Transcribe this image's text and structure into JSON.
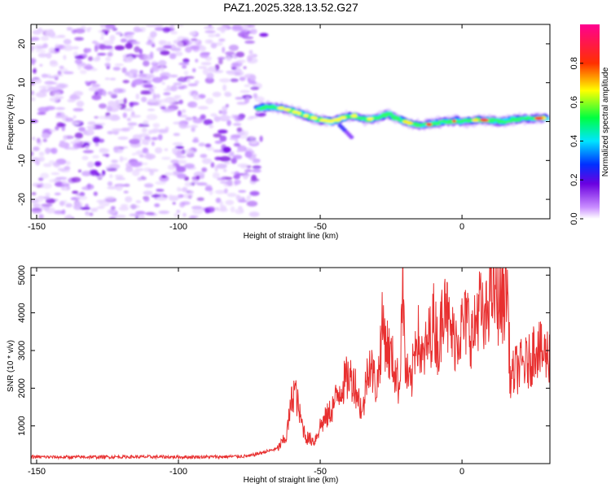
{
  "title": "PAZ1.2025.328.13.52.G27",
  "chart_data": [
    {
      "type": "heatmap",
      "xlabel": "Height of straight line (km)",
      "ylabel": "Frequency (Hz)",
      "xlim": [
        -152,
        31
      ],
      "ylim": [
        -25,
        25
      ],
      "xticks": [
        -150,
        -100,
        -50,
        0
      ],
      "yticks": [
        20,
        10,
        0,
        -10,
        -20
      ],
      "noise_region": [
        -152,
        -72
      ],
      "signal_trace": [
        {
          "x": -72,
          "y": 3.5
        },
        {
          "x": -68,
          "y": 3.8
        },
        {
          "x": -64,
          "y": 3.5
        },
        {
          "x": -60,
          "y": 2.8
        },
        {
          "x": -55,
          "y": 1.5
        },
        {
          "x": -50,
          "y": 0.5
        },
        {
          "x": -46,
          "y": 0.0
        },
        {
          "x": -42,
          "y": 1.0
        },
        {
          "x": -38,
          "y": 1.5
        },
        {
          "x": -34,
          "y": 0.5
        },
        {
          "x": -30,
          "y": 1.0
        },
        {
          "x": -26,
          "y": 2.0
        },
        {
          "x": -22,
          "y": 0.5
        },
        {
          "x": -18,
          "y": -0.5
        },
        {
          "x": -14,
          "y": -1.0
        },
        {
          "x": -10,
          "y": -0.5
        },
        {
          "x": -6,
          "y": 0.0
        },
        {
          "x": -2,
          "y": 0.2
        },
        {
          "x": 2,
          "y": 0.0
        },
        {
          "x": 6,
          "y": 0.5
        },
        {
          "x": 10,
          "y": 0.3
        },
        {
          "x": 14,
          "y": 0.0
        },
        {
          "x": 18,
          "y": 0.5
        },
        {
          "x": 22,
          "y": 0.8
        },
        {
          "x": 26,
          "y": 0.8
        },
        {
          "x": 30,
          "y": 1.0
        }
      ],
      "colorbar": {
        "label": "Normalized spectral amplitude",
        "range": [
          0,
          1
        ],
        "ticks": [
          0.0,
          0.2,
          0.4,
          0.6,
          0.8
        ]
      }
    },
    {
      "type": "line",
      "xlabel": "Height of straight line (km)",
      "ylabel": "SNR (10 * v/v)",
      "xlim": [
        -152,
        31
      ],
      "ylim": [
        0,
        5200
      ],
      "xticks": [
        -150,
        -100,
        -50,
        0
      ],
      "yticks": [
        1000,
        2000,
        3000,
        4000,
        5000
      ],
      "series": [
        {
          "name": "SNR",
          "color": "#e83030",
          "points": [
            [
              -152,
              180
            ],
            [
              -140,
              170
            ],
            [
              -120,
              180
            ],
            [
              -100,
              175
            ],
            [
              -85,
              180
            ],
            [
              -75,
              200
            ],
            [
              -70,
              300
            ],
            [
              -65,
              400
            ],
            [
              -62,
              700
            ],
            [
              -60,
              1700
            ],
            [
              -59,
              2000
            ],
            [
              -57,
              1200
            ],
            [
              -55,
              700
            ],
            [
              -52,
              600
            ],
            [
              -50,
              1000
            ],
            [
              -47,
              1300
            ],
            [
              -45,
              1600
            ],
            [
              -43,
              2000
            ],
            [
              -40,
              2300
            ],
            [
              -38,
              2200
            ],
            [
              -35,
              1300
            ],
            [
              -33,
              2800
            ],
            [
              -30,
              2000
            ],
            [
              -28,
              3700
            ],
            [
              -26,
              3000
            ],
            [
              -24,
              2600
            ],
            [
              -22,
              2000
            ],
            [
              -21,
              5100
            ],
            [
              -20,
              2500
            ],
            [
              -18,
              2000
            ],
            [
              -16,
              3600
            ],
            [
              -14,
              2700
            ],
            [
              -12,
              3200
            ],
            [
              -10,
              3800
            ],
            [
              -8,
              3000
            ],
            [
              -6,
              5000
            ],
            [
              -5,
              3700
            ],
            [
              -3,
              3300
            ],
            [
              0,
              3600
            ],
            [
              2,
              3800
            ],
            [
              4,
              3300
            ],
            [
              6,
              4300
            ],
            [
              8,
              3500
            ],
            [
              10,
              4800
            ],
            [
              12,
              4400
            ],
            [
              14,
              4200
            ],
            [
              16,
              4800
            ],
            [
              17,
              2200
            ],
            [
              19,
              2500
            ],
            [
              21,
              2600
            ],
            [
              24,
              2700
            ],
            [
              26,
              3200
            ],
            [
              28,
              2900
            ],
            [
              31,
              2900
            ]
          ]
        }
      ]
    }
  ]
}
